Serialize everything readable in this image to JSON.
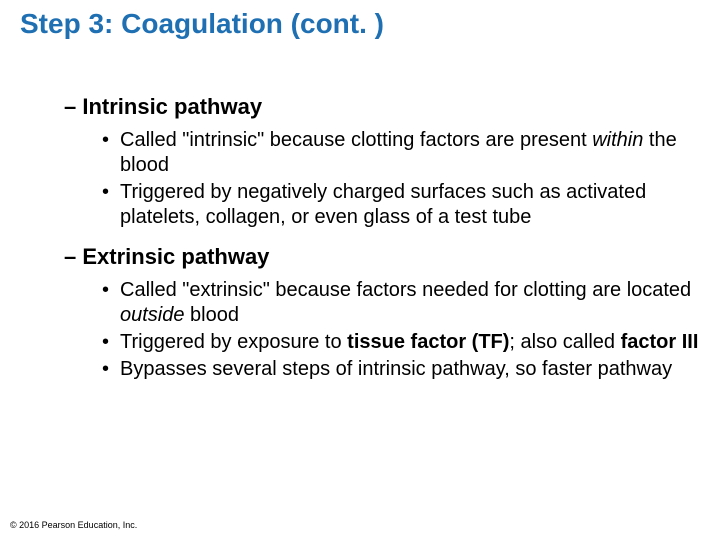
{
  "title": {
    "text": "Step 3: Coagulation (cont. )",
    "color": "#1f6fb3",
    "fontsize": 28
  },
  "sections": [
    {
      "heading": "– Intrinsic pathway",
      "heading_fontsize": 22,
      "heading_color": "#000000",
      "bullets": [
        {
          "segments": [
            {
              "text": "Called \"intrinsic\" because clotting factors are present "
            },
            {
              "text": "within",
              "italic": true
            },
            {
              "text": " the blood"
            }
          ]
        },
        {
          "segments": [
            {
              "text": "Triggered by negatively charged surfaces such as activated platelets, collagen, or even glass of a test tube"
            }
          ]
        }
      ]
    },
    {
      "heading": "– Extrinsic pathway",
      "heading_fontsize": 22,
      "heading_color": "#000000",
      "bullets": [
        {
          "segments": [
            {
              "text": "Called \"extrinsic\" because factors needed for clotting are located "
            },
            {
              "text": "outside",
              "italic": true
            },
            {
              "text": " blood"
            }
          ]
        },
        {
          "segments": [
            {
              "text": "Triggered by exposure to "
            },
            {
              "text": "tissue factor (TF)",
              "bold": true
            },
            {
              "text": "; also called "
            },
            {
              "text": "factor III",
              "bold": true
            }
          ]
        },
        {
          "segments": [
            {
              "text": "Bypasses several steps of intrinsic pathway, so faster pathway"
            }
          ]
        }
      ]
    }
  ],
  "body_fontsize": 20,
  "body_color": "#000000",
  "line_height": 1.25,
  "bullet_glyph": "•",
  "section_gap_before": [
    54,
    14
  ],
  "copyright": {
    "text": "© 2016 Pearson Education, Inc.",
    "fontsize": 9,
    "color": "#000000"
  },
  "background": "#ffffff"
}
